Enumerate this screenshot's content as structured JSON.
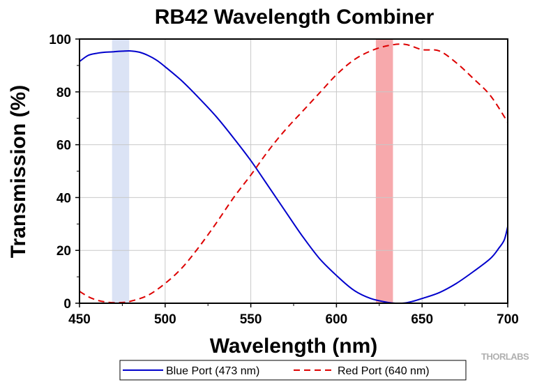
{
  "chart_data": {
    "type": "line",
    "title": "RB42 Wavelength Combiner",
    "xlabel": "Wavelength (nm)",
    "ylabel": "Transmission (%)",
    "xlim": [
      450,
      700
    ],
    "ylim": [
      0,
      100
    ],
    "xticks": [
      450,
      500,
      550,
      600,
      650,
      700
    ],
    "yticks": [
      0,
      20,
      40,
      60,
      80,
      100
    ],
    "grid": true,
    "legend_position": "bottom",
    "highlight_bands": [
      {
        "x0": 469,
        "x1": 479,
        "color": "#dbe3f5"
      },
      {
        "x0": 623,
        "x1": 633,
        "color": "#f7a9ac"
      }
    ],
    "series": [
      {
        "name": "Blue Port (473 nm)",
        "color": "#0000cc",
        "dash": "solid",
        "x": [
          450,
          455,
          460,
          465,
          470,
          475,
          480,
          485,
          490,
          495,
          500,
          510,
          520,
          530,
          540,
          550,
          560,
          570,
          580,
          590,
          600,
          610,
          620,
          630,
          635,
          640,
          645,
          650,
          660,
          670,
          680,
          690,
          695,
          698,
          700
        ],
        "y": [
          91.5,
          93.8,
          94.6,
          95.0,
          95.2,
          95.4,
          95.5,
          95.0,
          93.8,
          92.0,
          89.5,
          84.0,
          77.5,
          70.5,
          62.5,
          54.0,
          44.5,
          35.0,
          25.5,
          17.0,
          10.5,
          5.0,
          1.8,
          0.3,
          0.0,
          0.1,
          0.8,
          1.8,
          4.0,
          7.5,
          12.0,
          17.0,
          21.0,
          24.0,
          29.0
        ]
      },
      {
        "name": "Red Port (640 nm)",
        "color": "#dd0000",
        "dash": "dashed",
        "x": [
          450,
          455,
          460,
          465,
          470,
          475,
          480,
          490,
          500,
          510,
          520,
          530,
          540,
          550,
          560,
          570,
          580,
          590,
          600,
          610,
          620,
          630,
          640,
          650,
          660,
          670,
          680,
          690,
          700
        ],
        "y": [
          4.5,
          2.5,
          1.2,
          0.5,
          0.2,
          0.3,
          0.8,
          3.0,
          7.5,
          13.5,
          21.5,
          30.5,
          40.0,
          48.5,
          57.5,
          65.5,
          72.5,
          79.5,
          86.5,
          92.0,
          95.5,
          97.5,
          98.0,
          96.0,
          95.5,
          91.0,
          85.0,
          78.5,
          68.5
        ]
      }
    ]
  },
  "brand": {
    "text": "THORLABS",
    "color": "#b0b0b0"
  }
}
